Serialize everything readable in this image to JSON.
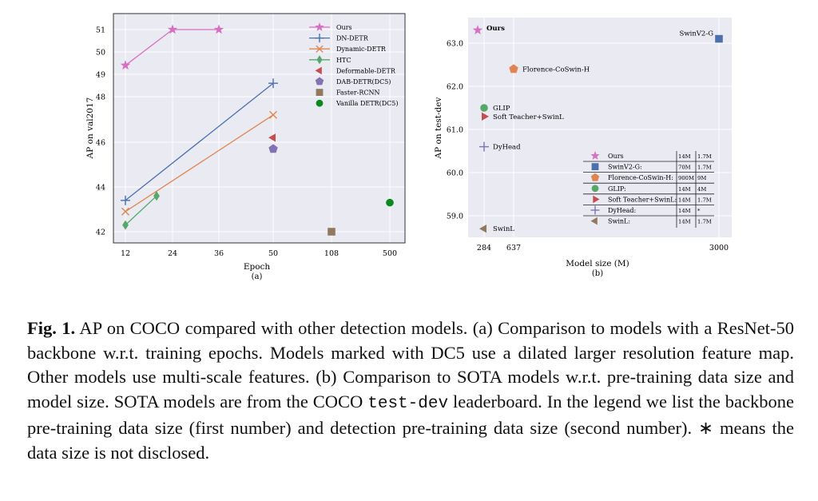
{
  "chart_data": [
    {
      "type": "scatter",
      "subtitle": "(a)",
      "xlabel": "Epoch",
      "ylabel": "AP on val2017",
      "x_ticks": [
        "12",
        "24",
        "36",
        "50",
        "108",
        "500"
      ],
      "y_ticks": [
        42,
        44,
        46,
        48,
        49,
        50,
        51
      ],
      "grid": true,
      "legend_position": "top-right",
      "series": [
        {
          "name": "Ours",
          "color": "#d671c2",
          "marker": "star",
          "connected": true,
          "points": [
            {
              "x": "12",
              "y": 49.4
            },
            {
              "x": "24",
              "y": 51.2
            },
            {
              "x": "36",
              "y": 51.1
            }
          ]
        },
        {
          "name": "DN-DETR",
          "color": "#4a70b0",
          "marker": "plus",
          "connected": true,
          "points": [
            {
              "x": "12",
              "y": 43.4
            },
            {
              "x": "50",
              "y": 48.6
            }
          ]
        },
        {
          "name": "Dynamic-DETR",
          "color": "#e08552",
          "marker": "x",
          "connected": true,
          "points": [
            {
              "x": "12",
              "y": 42.9
            },
            {
              "x": "50",
              "y": 47.2
            }
          ]
        },
        {
          "name": "HTC",
          "color": "#55a868",
          "marker": "diamond",
          "connected": true,
          "points": [
            {
              "x": "12",
              "y": 42.3
            },
            {
              "x": "20",
              "y": 43.6
            }
          ]
        },
        {
          "name": "Deformable-DETR",
          "color": "#c44e52",
          "marker": "triangle-left",
          "connected": false,
          "points": [
            {
              "x": "50",
              "y": 46.2
            }
          ]
        },
        {
          "name": "DAB-DETR(DC5)",
          "color": "#8172b3",
          "marker": "pentagon",
          "connected": false,
          "points": [
            {
              "x": "50",
              "y": 45.7
            }
          ]
        },
        {
          "name": "Faster-RCNN",
          "color": "#937860",
          "marker": "square",
          "connected": false,
          "points": [
            {
              "x": "108",
              "y": 42.0
            }
          ]
        },
        {
          "name": "Vanilla DETR(DC5)",
          "color": "#0a8a1e",
          "marker": "circle",
          "connected": false,
          "points": [
            {
              "x": "500",
              "y": 43.3
            }
          ]
        }
      ]
    },
    {
      "type": "scatter",
      "subtitle": "(b)",
      "xlabel": "Model size (M)",
      "ylabel": "AP on test-dev",
      "x_ticks": [
        "284",
        "637",
        "3000"
      ],
      "y_ticks": [
        "59.0",
        "60.0",
        "61.0",
        "62.0",
        "63.0"
      ],
      "ylim": [
        58.6,
        63.35
      ],
      "grid": true,
      "legend_position": "bottom-right",
      "points": [
        {
          "name": "Ours",
          "label": "Ours",
          "x": 218,
          "y": 63.3,
          "color": "#d671c2",
          "marker": "star",
          "backbone": "14M",
          "detection": "1.7M"
        },
        {
          "name": "SwinV2-G:",
          "label": "SwinV2-G",
          "x": 3000,
          "y": 63.1,
          "color": "#4a70b0",
          "marker": "square",
          "backbone": "70M",
          "detection": "1.7M"
        },
        {
          "name": "Florence-CoSwin-H:",
          "label": "Florence-CoSwin-H",
          "x": 637,
          "y": 62.4,
          "color": "#e08552",
          "marker": "pentagon",
          "backbone": "900M",
          "detection": "9M"
        },
        {
          "name": "GLIP:",
          "label": "GLIP",
          "x": 284,
          "y": 61.5,
          "color": "#55a868",
          "marker": "circle",
          "backbone": "14M",
          "detection": "4M"
        },
        {
          "name": "Soft Teacher+SwinL:",
          "label": "Soft Teacher+SwinL",
          "x": 284,
          "y": 61.3,
          "color": "#c44e52",
          "marker": "triangle-right",
          "backbone": "14M",
          "detection": "1.7M"
        },
        {
          "name": "DyHead:",
          "label": "DyHead",
          "x": 284,
          "y": 60.6,
          "color": "#8172b3",
          "marker": "plus",
          "backbone": "14M",
          "detection": "*"
        },
        {
          "name": "SwinL:",
          "label": "SwinL",
          "x": 284,
          "y": 58.7,
          "color": "#937860",
          "marker": "triangle-left",
          "backbone": "14M",
          "detection": "1.7M"
        }
      ]
    }
  ],
  "caption": {
    "label": "Fig. 1.",
    "p1": " AP on COCO compared with other detection models. (a) Comparison to models with a ResNet-50 backbone w.r.t. training epochs. Models marked with DC5 use a dilated larger resolution feature map. Other models use multi-scale features. (b) Comparison to SOTA models w.r.t. pre-training data size and model size. SOTA models are from the COCO ",
    "code": "test-dev",
    "p2": " leaderboard. In the legend we list the backbone pre-training data size (first number) and detection pre-training data size (second number). ∗ means the data size is not disclosed."
  }
}
